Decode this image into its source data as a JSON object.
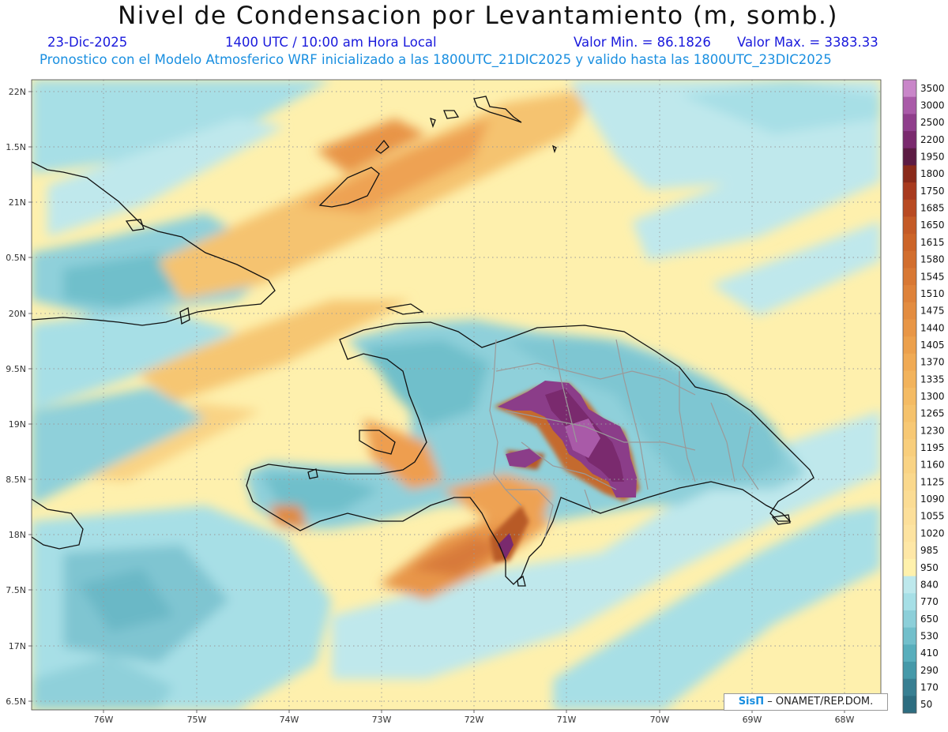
{
  "title": "Nivel de Condensacion por Levantamiento (m, somb.)",
  "date": "23-Dic-2025",
  "time": "1400 UTC / 10:00 am Hora Local",
  "min_label": "Valor Min. = 86.1826",
  "max_label": "Valor Max. = 3383.33",
  "model_line": "Pronostico con el Modelo Atmosferico WRF inicializado a las 1800UTC_21DIC2025 y valido hasta las  1800UTC_23DIC2025",
  "credit": {
    "logo": "SisΠ",
    "text": "– ONAMET/REP.DOM."
  },
  "lat_labels": [
    "22N",
    "1.5N",
    "21N",
    "0.5N",
    "20N",
    "9.5N",
    "19N",
    "8.5N",
    "18N",
    "7.5N",
    "17N",
    "6.5N"
  ],
  "lon_labels": [
    "76W",
    "75W",
    "74W",
    "73W",
    "72W",
    "71W",
    "70W",
    "69W",
    "68W"
  ],
  "colorbar": {
    "levels": [
      "3500",
      "3000",
      "2500",
      "2200",
      "1950",
      "1800",
      "1750",
      "1685",
      "1650",
      "1615",
      "1580",
      "1545",
      "1510",
      "1475",
      "1440",
      "1405",
      "1370",
      "1335",
      "1300",
      "1265",
      "1230",
      "1195",
      "1160",
      "1125",
      "1090",
      "1055",
      "1020",
      "985",
      "950",
      "840",
      "770",
      "650",
      "530",
      "410",
      "290",
      "170",
      "50"
    ],
    "colors": [
      "#c986c9",
      "#a95aa8",
      "#8f3e8c",
      "#7a2a6e",
      "#5c1b43",
      "#8a2a1a",
      "#a83a1e",
      "#b84a22",
      "#c45a26",
      "#cc6428",
      "#d26e2e",
      "#d87834",
      "#de823a",
      "#e38c40",
      "#e89646",
      "#eca04c",
      "#f0aa54",
      "#f2b35c",
      "#f4bb64",
      "#f5c26c",
      "#f7c874",
      "#f8ce7c",
      "#f9d384",
      "#fad88c",
      "#fbdc94",
      "#fcdf9a",
      "#fde3a0",
      "#fee7a6",
      "#fff1ac",
      "#bde8ec",
      "#a6dfe6",
      "#8ccfd9",
      "#72bfcb",
      "#58aebc",
      "#4599a9",
      "#387f92",
      "#2d6d80"
    ]
  }
}
